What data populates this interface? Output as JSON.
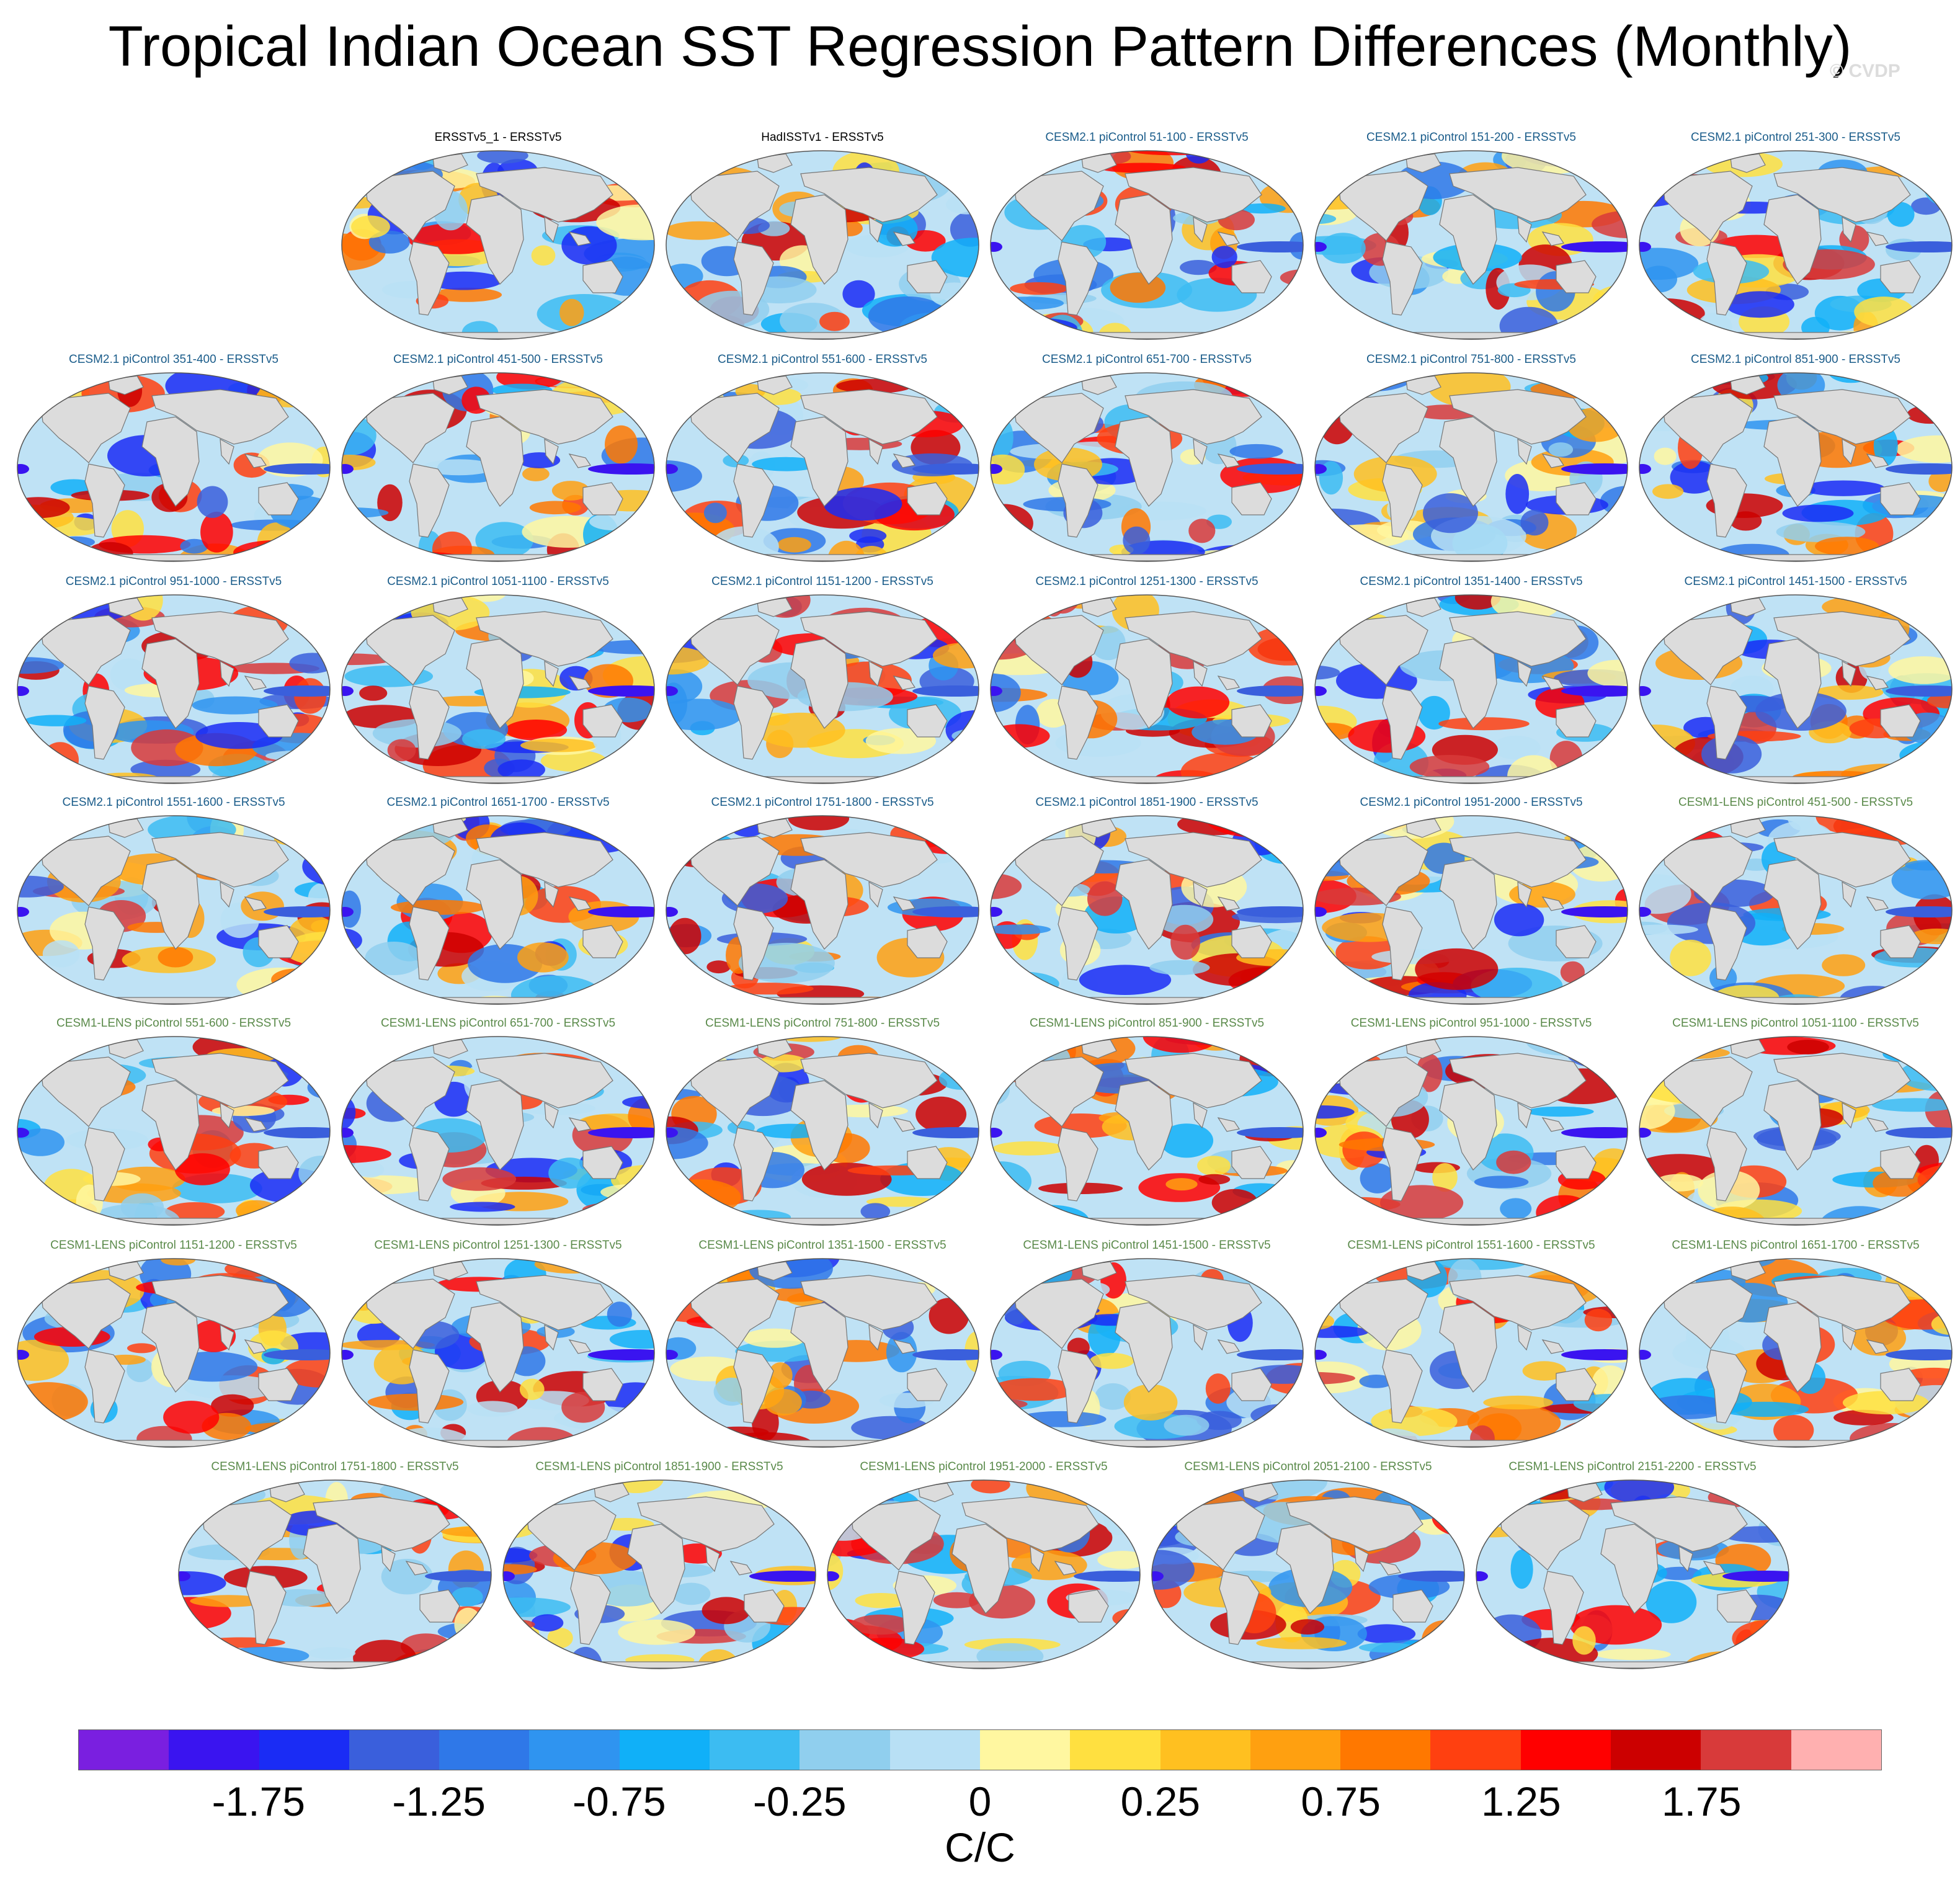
{
  "title": "Tropical Indian Ocean SST Regression Pattern Differences (Monthly)",
  "watermark": "© CVDP",
  "panels": [
    {
      "label": "ERSSTv5_1 - ERSSTv5",
      "group": "obs"
    },
    {
      "label": "HadISSTv1 - ERSSTv5",
      "group": "obs"
    },
    {
      "label": "CESM2.1 piControl 51-100 - ERSSTv5",
      "group": "cesm2"
    },
    {
      "label": "CESM2.1 piControl 151-200 - ERSSTv5",
      "group": "cesm2"
    },
    {
      "label": "CESM2.1 piControl 251-300 - ERSSTv5",
      "group": "cesm2"
    },
    {
      "label": "CESM2.1 piControl 351-400 - ERSSTv5",
      "group": "cesm2"
    },
    {
      "label": "CESM2.1 piControl 451-500 - ERSSTv5",
      "group": "cesm2"
    },
    {
      "label": "CESM2.1 piControl 551-600 - ERSSTv5",
      "group": "cesm2"
    },
    {
      "label": "CESM2.1 piControl 651-700 - ERSSTv5",
      "group": "cesm2"
    },
    {
      "label": "CESM2.1 piControl 751-800 - ERSSTv5",
      "group": "cesm2"
    },
    {
      "label": "CESM2.1 piControl 851-900 - ERSSTv5",
      "group": "cesm2"
    },
    {
      "label": "CESM2.1 piControl 951-1000 - ERSSTv5",
      "group": "cesm2"
    },
    {
      "label": "CESM2.1 piControl 1051-1100 - ERSSTv5",
      "group": "cesm2"
    },
    {
      "label": "CESM2.1 piControl 1151-1200 - ERSSTv5",
      "group": "cesm2"
    },
    {
      "label": "CESM2.1 piControl 1251-1300 - ERSSTv5",
      "group": "cesm2"
    },
    {
      "label": "CESM2.1 piControl 1351-1400 - ERSSTv5",
      "group": "cesm2"
    },
    {
      "label": "CESM2.1 piControl 1451-1500 - ERSSTv5",
      "group": "cesm2"
    },
    {
      "label": "CESM2.1 piControl 1551-1600 - ERSSTv5",
      "group": "cesm2"
    },
    {
      "label": "CESM2.1 piControl 1651-1700 - ERSSTv5",
      "group": "cesm2"
    },
    {
      "label": "CESM2.1 piControl 1751-1800 - ERSSTv5",
      "group": "cesm2"
    },
    {
      "label": "CESM2.1 piControl 1851-1900 - ERSSTv5",
      "group": "cesm2"
    },
    {
      "label": "CESM2.1 piControl 1951-2000 - ERSSTv5",
      "group": "cesm2"
    },
    {
      "label": "CESM1-LENS piControl 451-500 - ERSSTv5",
      "group": "lens"
    },
    {
      "label": "CESM1-LENS piControl 551-600 - ERSSTv5",
      "group": "lens"
    },
    {
      "label": "CESM1-LENS piControl 651-700 - ERSSTv5",
      "group": "lens"
    },
    {
      "label": "CESM1-LENS piControl 751-800 - ERSSTv5",
      "group": "lens"
    },
    {
      "label": "CESM1-LENS piControl 851-900 - ERSSTv5",
      "group": "lens"
    },
    {
      "label": "CESM1-LENS piControl 951-1000 - ERSSTv5",
      "group": "lens"
    },
    {
      "label": "CESM1-LENS piControl 1051-1100 - ERSSTv5",
      "group": "lens"
    },
    {
      "label": "CESM1-LENS piControl 1151-1200 - ERSSTv5",
      "group": "lens"
    },
    {
      "label": "CESM1-LENS piControl 1251-1300 - ERSSTv5",
      "group": "lens"
    },
    {
      "label": "CESM1-LENS piControl 1351-1500 - ERSSTv5",
      "group": "lens"
    },
    {
      "label": "CESM1-LENS piControl 1451-1500 - ERSSTv5",
      "group": "lens"
    },
    {
      "label": "CESM1-LENS piControl 1551-1600 - ERSSTv5",
      "group": "lens"
    },
    {
      "label": "CESM1-LENS piControl 1651-1700 - ERSSTv5",
      "group": "lens"
    },
    {
      "label": "CESM1-LENS piControl 1751-1800 - ERSSTv5",
      "group": "lens"
    },
    {
      "label": "CESM1-LENS piControl 1851-1900 - ERSSTv5",
      "group": "lens"
    },
    {
      "label": "CESM1-LENS piControl 1951-2000 - ERSSTv5",
      "group": "lens"
    },
    {
      "label": "CESM1-LENS piControl 2051-2100 - ERSSTv5",
      "group": "lens"
    },
    {
      "label": "CESM1-LENS piControl 2151-2200 - ERSSTv5",
      "group": "lens"
    }
  ],
  "map_colors": {
    "land": "#dcdcdc",
    "coast": "#777777",
    "ocean_base": "#bfe2f5"
  },
  "colorbar": {
    "units": "C/C",
    "colors": [
      "#7a1fe0",
      "#3a14f0",
      "#1a2cf5",
      "#3a5fdc",
      "#2f78e8",
      "#2f94f0",
      "#10b0f8",
      "#3cbcf2",
      "#90cfee",
      "#b8e0f5",
      "#fff7a0",
      "#ffe040",
      "#ffc020",
      "#ffa010",
      "#ff7800",
      "#ff4010",
      "#ff0000",
      "#cc0000",
      "#d83a3a",
      "#ffb0b0"
    ],
    "tick_values": [
      "-1.75",
      "-1.25",
      "-0.75",
      "-0.25",
      "0",
      "0.25",
      "0.75",
      "1.25",
      "1.75"
    ]
  }
}
